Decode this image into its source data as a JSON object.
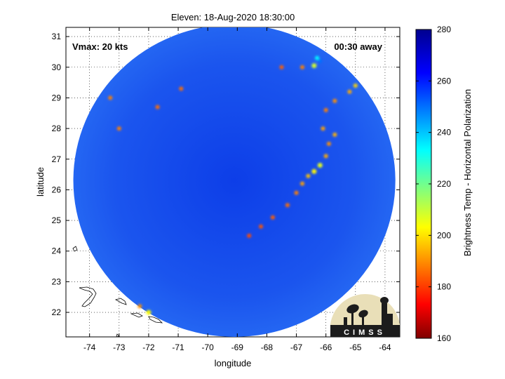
{
  "chart_data": {
    "type": "heatmap",
    "title": "Eleven: 18-Aug-2020 18:30:00",
    "xlabel": "longitude",
    "ylabel": "latitude",
    "xlim": [
      -74.8,
      -63.5
    ],
    "ylim": [
      21.2,
      31.3
    ],
    "xticks": [
      "-74",
      "-73",
      "-72",
      "-71",
      "-70",
      "-69",
      "-68",
      "-67",
      "-66",
      "-65",
      "-64"
    ],
    "xtick_values": [
      -74,
      -73,
      -72,
      -71,
      -70,
      -69,
      -68,
      -67,
      -66,
      -65,
      -64
    ],
    "yticks": [
      "22",
      "23",
      "24",
      "25",
      "26",
      "27",
      "28",
      "29",
      "30",
      "31"
    ],
    "ytick_values": [
      22,
      23,
      24,
      25,
      26,
      27,
      28,
      29,
      30,
      31
    ],
    "grid": true,
    "annotations": {
      "vmax": "Vmax: 20 kts",
      "time_away": "00:30 away"
    },
    "colorbar": {
      "label": "Brightness Temp - Horizontal Polarization",
      "ticks": [
        "280",
        "260",
        "240",
        "220",
        "200",
        "180",
        "160"
      ],
      "tick_values": [
        280,
        260,
        240,
        220,
        200,
        180,
        160
      ],
      "range": [
        160,
        280
      ]
    },
    "swath_center": {
      "lon": -69.1,
      "lat": 26.3
    },
    "swath_radius_deg_lon": 5.45,
    "swath_radius_deg_lat": 5.1,
    "background_value": 266,
    "features": [
      {
        "lon": -66.2,
        "lat": 30.2,
        "value": 188
      },
      {
        "lon": -66.3,
        "lat": 30.3,
        "value": 205
      },
      {
        "lon": -66.4,
        "lat": 30.05,
        "value": 230
      },
      {
        "lon": -66.8,
        "lat": 30.0,
        "value": 250
      },
      {
        "lon": -65.0,
        "lat": 29.4,
        "value": 240
      },
      {
        "lon": -65.2,
        "lat": 29.2,
        "value": 245
      },
      {
        "lon": -65.7,
        "lat": 28.9,
        "value": 248
      },
      {
        "lon": -66.0,
        "lat": 28.6,
        "value": 250
      },
      {
        "lon": -66.1,
        "lat": 28.0,
        "value": 246
      },
      {
        "lon": -65.7,
        "lat": 27.8,
        "value": 244
      },
      {
        "lon": -65.9,
        "lat": 27.5,
        "value": 248
      },
      {
        "lon": -66.0,
        "lat": 27.1,
        "value": 245
      },
      {
        "lon": -66.2,
        "lat": 26.8,
        "value": 232
      },
      {
        "lon": -66.4,
        "lat": 26.6,
        "value": 236
      },
      {
        "lon": -66.6,
        "lat": 26.45,
        "value": 242
      },
      {
        "lon": -66.8,
        "lat": 26.2,
        "value": 246
      },
      {
        "lon": -67.0,
        "lat": 25.9,
        "value": 250
      },
      {
        "lon": -67.3,
        "lat": 25.5,
        "value": 252
      },
      {
        "lon": -67.8,
        "lat": 25.1,
        "value": 254
      },
      {
        "lon": -68.2,
        "lat": 24.8,
        "value": 255
      },
      {
        "lon": -68.6,
        "lat": 24.5,
        "value": 256
      },
      {
        "lon": -72.0,
        "lat": 22.0,
        "value": 235
      },
      {
        "lon": -72.3,
        "lat": 22.2,
        "value": 248
      },
      {
        "lon": -73.0,
        "lat": 28.0,
        "value": 250
      },
      {
        "lon": -71.7,
        "lat": 28.7,
        "value": 252
      },
      {
        "lon": -70.9,
        "lat": 29.3,
        "value": 252
      },
      {
        "lon": -67.5,
        "lat": 30.0,
        "value": 254
      },
      {
        "lon": -73.3,
        "lat": 29.0,
        "value": 250
      }
    ]
  },
  "logo": {
    "text": "CIMSS"
  }
}
